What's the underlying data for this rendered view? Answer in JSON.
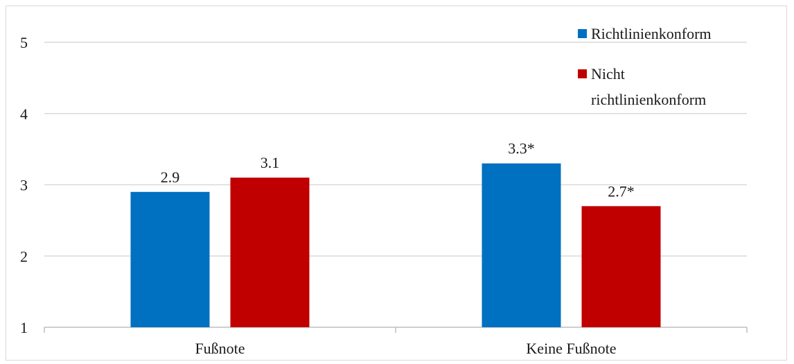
{
  "chart_data": {
    "type": "bar",
    "categories": [
      "Fußnote",
      "Keine Fußnote"
    ],
    "series": [
      {
        "name": "Richtlinienkonform",
        "values": [
          2.9,
          3.3
        ],
        "labels": [
          "2.9",
          "3.3*"
        ],
        "color": "#0070c0"
      },
      {
        "name": "Nicht richtlinienkonform",
        "name_lines": [
          "Nicht",
          "richtlinienkonform"
        ],
        "values": [
          3.1,
          2.7
        ],
        "labels": [
          "3.1",
          "2.7*"
        ],
        "color": "#c00000"
      }
    ],
    "ylim": [
      1,
      5
    ],
    "yticks": [
      1,
      2,
      3,
      4,
      5
    ],
    "grid": true,
    "legend_position": "top-right",
    "title": "",
    "xlabel": "",
    "ylabel": ""
  }
}
